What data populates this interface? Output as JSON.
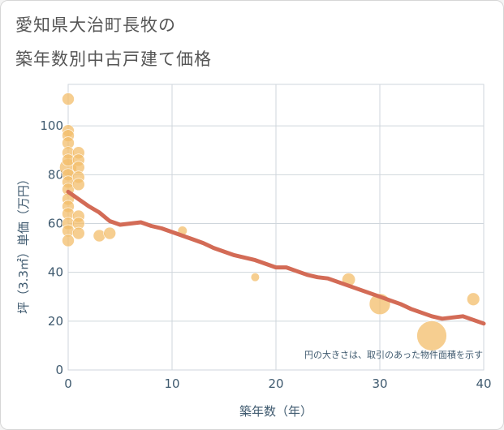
{
  "header": {
    "title_line1": "愛知県大治町長牧の",
    "title_line2": "築年数別中古戸建て価格"
  },
  "chart_data": {
    "type": "scatter",
    "title": "愛知県大治町長牧の築年数別中古戸建て価格",
    "xlabel": "築年数（年）",
    "ylabel": "坪（3.3㎡）単価（万円）",
    "xlim": [
      0,
      40
    ],
    "ylim": [
      0,
      117
    ],
    "xticks": [
      0,
      10,
      20,
      30,
      40
    ],
    "yticks": [
      0,
      20,
      40,
      60,
      80,
      100
    ],
    "grid": true,
    "note": "円の大きさは、取引のあった物件面積を示す",
    "scatter_color": "#f3bd6b",
    "line_color": "#d36b56",
    "scatter_points": [
      {
        "x": 0,
        "y": 111,
        "s": 1
      },
      {
        "x": 0,
        "y": 98,
        "s": 1
      },
      {
        "x": 0,
        "y": 96,
        "s": 1
      },
      {
        "x": 0,
        "y": 93,
        "s": 1
      },
      {
        "x": 0,
        "y": 89,
        "s": 1
      },
      {
        "x": 0,
        "y": 86,
        "s": 1
      },
      {
        "x": 0,
        "y": 83,
        "s": 2
      },
      {
        "x": 0,
        "y": 80,
        "s": 1
      },
      {
        "x": 0,
        "y": 77,
        "s": 1
      },
      {
        "x": 0,
        "y": 74,
        "s": 1
      },
      {
        "x": 0,
        "y": 70,
        "s": 1
      },
      {
        "x": 0,
        "y": 67,
        "s": 1
      },
      {
        "x": 0,
        "y": 64,
        "s": 1
      },
      {
        "x": 0,
        "y": 60,
        "s": 1
      },
      {
        "x": 0,
        "y": 57,
        "s": 1
      },
      {
        "x": 0,
        "y": 53,
        "s": 1
      },
      {
        "x": 1,
        "y": 89,
        "s": 1
      },
      {
        "x": 1,
        "y": 86,
        "s": 1
      },
      {
        "x": 1,
        "y": 83,
        "s": 1
      },
      {
        "x": 1,
        "y": 79,
        "s": 1
      },
      {
        "x": 1,
        "y": 76,
        "s": 1
      },
      {
        "x": 1,
        "y": 63,
        "s": 1
      },
      {
        "x": 1,
        "y": 60,
        "s": 1
      },
      {
        "x": 1,
        "y": 56,
        "s": 1
      },
      {
        "x": 3,
        "y": 55,
        "s": 1
      },
      {
        "x": 4,
        "y": 56,
        "s": 1
      },
      {
        "x": 11,
        "y": 57,
        "s": 0.6
      },
      {
        "x": 18,
        "y": 38,
        "s": 0.5
      },
      {
        "x": 27,
        "y": 37,
        "s": 1.2
      },
      {
        "x": 30,
        "y": 27,
        "s": 3
      },
      {
        "x": 35,
        "y": 14,
        "s": 6
      },
      {
        "x": 39,
        "y": 29,
        "s": 1.1
      }
    ],
    "trend_line": {
      "x": [
        0,
        1,
        2,
        3,
        4,
        5,
        6,
        7,
        8,
        9,
        10,
        11,
        12,
        13,
        14,
        15,
        16,
        17,
        18,
        19,
        20,
        21,
        22,
        23,
        24,
        25,
        26,
        27,
        28,
        29,
        30,
        31,
        32,
        33,
        34,
        35,
        36,
        37,
        38,
        39,
        40
      ],
      "y": [
        73,
        70,
        67,
        64.5,
        61,
        59.5,
        60,
        60.5,
        59,
        58,
        56.5,
        55,
        53.5,
        52,
        50,
        48.5,
        47,
        46,
        45,
        43.5,
        42,
        42,
        40.5,
        39,
        38,
        37.5,
        36,
        34.5,
        33,
        31.5,
        30,
        28.5,
        27,
        25,
        23.5,
        22,
        21,
        21.5,
        22,
        20.5,
        19
      ]
    }
  }
}
